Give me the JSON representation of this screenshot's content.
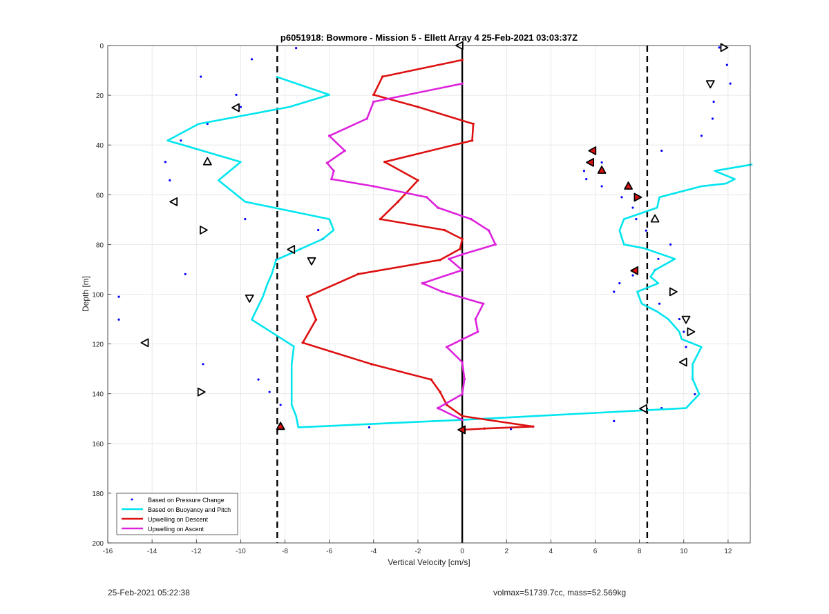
{
  "footer": {
    "timestamp": "25-Feb-2021 05:22:38",
    "info": "volmax=51739.7cc, mass=52.569kg"
  },
  "chart_data": {
    "type": "line",
    "title": "p6051918: Bowmore - Mission 5 - Ellett Array 4 25-Feb-2021 03:03:37Z",
    "xlabel": "Vertical Velocity [cm/s]",
    "ylabel": "Depth [m]",
    "xlim": [
      -16,
      13
    ],
    "ylim": [
      0,
      200
    ],
    "y_reversed": true,
    "grid": true,
    "legend_position": "bottom-left",
    "xticks": [
      -16,
      -14,
      -12,
      -10,
      -8,
      -6,
      -4,
      -2,
      0,
      2,
      4,
      6,
      8,
      10,
      12
    ],
    "yticks": [
      0,
      20,
      40,
      60,
      80,
      100,
      120,
      140,
      160,
      180,
      200
    ],
    "vertical_lines": [
      {
        "x": -8.35,
        "style": "dashed",
        "color": "#000000"
      },
      {
        "x": 0,
        "style": "solid",
        "color": "#000000"
      },
      {
        "x": 8.35,
        "style": "dashed",
        "color": "#000000"
      }
    ],
    "series": [
      {
        "name": "Based on Pressure Change",
        "style": "points",
        "color": "#0000ff",
        "points": [
          [
            -7.5,
            1
          ],
          [
            -9.5,
            5.5
          ],
          [
            -11.8,
            12.5
          ],
          [
            -10.2,
            19.8
          ],
          [
            -10,
            24.7
          ],
          [
            -11.5,
            31.5
          ],
          [
            -12.7,
            38.2
          ],
          [
            -13.4,
            46.8
          ],
          [
            -13.2,
            54.2
          ],
          [
            -12.9,
            62.8
          ],
          [
            -9.8,
            69.8
          ],
          [
            -6.5,
            74.2
          ],
          [
            -6.3,
            77.8
          ],
          [
            -7.3,
            81.8
          ],
          [
            -8.4,
            86.2
          ],
          [
            -12.5,
            91.9
          ],
          [
            -15.5,
            101
          ],
          [
            -15.5,
            110.2
          ],
          [
            -11.7,
            128.1
          ],
          [
            -9.2,
            134.3
          ],
          [
            -8.7,
            139.3
          ],
          [
            -8.2,
            144.5
          ],
          [
            -4.2,
            153.5
          ],
          [
            0,
            154.5
          ],
          [
            2.2,
            154.2
          ],
          [
            11.6,
            0.8
          ],
          [
            11.95,
            7.8
          ],
          [
            12.1,
            15.3
          ],
          [
            11.35,
            22.6
          ],
          [
            11.3,
            29.4
          ],
          [
            10.8,
            36.3
          ],
          [
            9,
            42.3
          ],
          [
            6.3,
            47
          ],
          [
            5.5,
            50.4
          ],
          [
            5.6,
            53.7
          ],
          [
            6.3,
            56.6
          ],
          [
            7.2,
            61
          ],
          [
            7.7,
            65.2
          ],
          [
            7.85,
            69.8
          ],
          [
            8.3,
            74.4
          ],
          [
            9.4,
            80
          ],
          [
            8.85,
            85.8
          ],
          [
            8.7,
            90.3
          ],
          [
            7.7,
            92.4
          ],
          [
            7.1,
            95.6
          ],
          [
            6.85,
            99
          ],
          [
            8.9,
            103.8
          ],
          [
            9.8,
            110
          ],
          [
            10,
            115.1
          ],
          [
            10.1,
            121.2
          ],
          [
            9.9,
            127.3
          ],
          [
            10.4,
            134.1
          ],
          [
            10.5,
            140.2
          ],
          [
            9,
            145.8
          ],
          [
            6.85,
            151
          ]
        ]
      },
      {
        "name": "Based on Buoyancy and Pitch",
        "style": "line",
        "color": "#00e5ee",
        "points": [
          [
            -8.4,
            12.5
          ],
          [
            -6,
            19.8
          ],
          [
            -7.8,
            24.7
          ],
          [
            -11.9,
            31.5
          ],
          [
            -13.3,
            38.2
          ],
          [
            -10,
            46.8
          ],
          [
            -11,
            54.2
          ],
          [
            -9.8,
            62.8
          ],
          [
            -6,
            69.8
          ],
          [
            -5.8,
            74.2
          ],
          [
            -6.3,
            77.8
          ],
          [
            -7.3,
            81.8
          ],
          [
            -8.4,
            86.2
          ],
          [
            -8.6,
            91.9
          ],
          [
            -8.8,
            96
          ],
          [
            -9,
            101
          ],
          [
            -9.5,
            110.2
          ],
          [
            -7.6,
            121
          ],
          [
            -7.7,
            128.1
          ],
          [
            -7.7,
            134.3
          ],
          [
            -7.7,
            139.3
          ],
          [
            -7.7,
            144.5
          ],
          [
            -7.5,
            149
          ],
          [
            -7.4,
            153.5
          ],
          [
            0,
            150.5
          ],
          [
            10.1,
            145.8
          ],
          [
            10.7,
            140.2
          ],
          [
            10.4,
            134.1
          ],
          [
            10.4,
            128.1
          ],
          [
            10.8,
            121.2
          ],
          [
            9.9,
            118
          ],
          [
            9.8,
            115.1
          ],
          [
            9.3,
            110
          ],
          [
            8.8,
            107
          ],
          [
            8.1,
            103.8
          ],
          [
            7.9,
            99
          ],
          [
            8.85,
            95.6
          ],
          [
            8.5,
            93
          ],
          [
            8.7,
            90.3
          ],
          [
            9.6,
            85.8
          ],
          [
            8.2,
            81.5
          ],
          [
            7.3,
            80
          ],
          [
            7.1,
            74.4
          ],
          [
            7.3,
            69.8
          ],
          [
            8.8,
            65.2
          ],
          [
            8.9,
            61
          ],
          [
            10.8,
            56.6
          ],
          [
            11.9,
            55.5
          ],
          [
            12.3,
            53.7
          ],
          [
            11.4,
            50.4
          ],
          [
            13.1,
            47.8
          ]
        ]
      },
      {
        "name": "Upwelling on Descent",
        "style": "line-markers",
        "color": "#dd1111",
        "points": [
          [
            0,
            5.8
          ],
          [
            -3.6,
            12.5
          ],
          [
            -4,
            19.8
          ],
          [
            -2,
            24.7
          ],
          [
            0.5,
            31.5
          ],
          [
            0.45,
            38.2
          ],
          [
            -3.5,
            46.8
          ],
          [
            -2,
            54.2
          ],
          [
            -2.9,
            62.8
          ],
          [
            -3.7,
            69.8
          ],
          [
            -0.8,
            74.2
          ],
          [
            0,
            77.8
          ],
          [
            -0.1,
            81.8
          ],
          [
            -1,
            86.2
          ],
          [
            -4.7,
            91.9
          ],
          [
            -7,
            101
          ],
          [
            -6.6,
            110.2
          ],
          [
            -7.2,
            119.5
          ],
          [
            -4.1,
            128.1
          ],
          [
            -1.4,
            134.3
          ],
          [
            -1,
            139.3
          ],
          [
            -0.7,
            144.5
          ],
          [
            0,
            149
          ],
          [
            3.2,
            153.2
          ],
          [
            1,
            154
          ],
          [
            0,
            154.5
          ]
        ]
      },
      {
        "name": "Upwelling on Ascent",
        "style": "line-markers",
        "color": "#dd22dd",
        "points": [
          [
            0,
            15.3
          ],
          [
            -4,
            22.6
          ],
          [
            -4.3,
            29.4
          ],
          [
            -6,
            36.3
          ],
          [
            -5.3,
            42.3
          ],
          [
            -6.1,
            47.2
          ],
          [
            -5.8,
            50.4
          ],
          [
            -5.9,
            53.7
          ],
          [
            -4,
            56.6
          ],
          [
            -1.6,
            61
          ],
          [
            -1.1,
            65.2
          ],
          [
            0.4,
            69.8
          ],
          [
            1.2,
            74.4
          ],
          [
            1.5,
            80
          ],
          [
            0,
            84
          ],
          [
            -0.6,
            85.8
          ],
          [
            0,
            90.3
          ],
          [
            -1.8,
            95.6
          ],
          [
            -0.9,
            99
          ],
          [
            0.95,
            103.8
          ],
          [
            0.6,
            110
          ],
          [
            0.7,
            115.1
          ],
          [
            -0.7,
            121.2
          ],
          [
            0,
            127.3
          ],
          [
            0.1,
            134.1
          ],
          [
            0,
            140.2
          ],
          [
            -1.1,
            145.8
          ],
          [
            0,
            150.5
          ]
        ]
      }
    ],
    "triangle_markers": [
      {
        "x": -0.1,
        "y": 0,
        "dir": "left",
        "fill": "#ffffff"
      },
      {
        "x": -10.2,
        "y": 25,
        "dir": "left",
        "fill": "#ffffff"
      },
      {
        "x": -11.5,
        "y": 46.8,
        "dir": "up",
        "fill": "#ffffff"
      },
      {
        "x": -13,
        "y": 62.8,
        "dir": "left",
        "fill": "#ffffff"
      },
      {
        "x": -11.7,
        "y": 74.2,
        "dir": "right",
        "fill": "#ffffff"
      },
      {
        "x": -7.7,
        "y": 82,
        "dir": "left",
        "fill": "#ffffff"
      },
      {
        "x": -6.8,
        "y": 86.5,
        "dir": "down",
        "fill": "#ffffff"
      },
      {
        "x": -9.6,
        "y": 101.5,
        "dir": "down",
        "fill": "#ffffff"
      },
      {
        "x": -14.3,
        "y": 119.5,
        "dir": "left",
        "fill": "#ffffff"
      },
      {
        "x": -11.8,
        "y": 139.3,
        "dir": "right",
        "fill": "#ffffff"
      },
      {
        "x": -8.2,
        "y": 153.2,
        "dir": "up",
        "fill": "#dd1111"
      },
      {
        "x": 0,
        "y": 154.5,
        "dir": "left",
        "fill": "#dd1111"
      },
      {
        "x": 11.8,
        "y": 0.8,
        "dir": "right",
        "fill": "#ffffff"
      },
      {
        "x": 11.2,
        "y": 15.3,
        "dir": "down",
        "fill": "#ffffff"
      },
      {
        "x": 5.9,
        "y": 42.3,
        "dir": "left",
        "fill": "#dd1111"
      },
      {
        "x": 5.8,
        "y": 47,
        "dir": "left",
        "fill": "#dd1111"
      },
      {
        "x": 6.3,
        "y": 50.2,
        "dir": "up",
        "fill": "#dd1111"
      },
      {
        "x": 7.5,
        "y": 56.6,
        "dir": "up",
        "fill": "#dd1111"
      },
      {
        "x": 7.9,
        "y": 61,
        "dir": "right",
        "fill": "#dd1111"
      },
      {
        "x": 8.7,
        "y": 69.8,
        "dir": "up",
        "fill": "#ffffff"
      },
      {
        "x": 7.8,
        "y": 90.5,
        "dir": "left",
        "fill": "#dd1111"
      },
      {
        "x": 9.5,
        "y": 99,
        "dir": "right",
        "fill": "#ffffff"
      },
      {
        "x": 10.1,
        "y": 110,
        "dir": "down",
        "fill": "#ffffff"
      },
      {
        "x": 10.3,
        "y": 115.1,
        "dir": "right",
        "fill": "#ffffff"
      },
      {
        "x": 10,
        "y": 127.3,
        "dir": "left",
        "fill": "#ffffff"
      },
      {
        "x": 8.2,
        "y": 146,
        "dir": "left",
        "fill": "#ffffff"
      }
    ]
  }
}
